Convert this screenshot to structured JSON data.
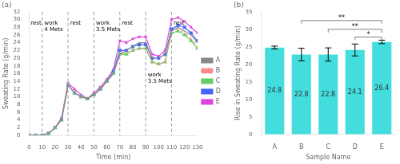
{
  "chart_data": [
    {
      "type": "line",
      "title": "(a)",
      "x_label": "Time (min)",
      "y_label": "Sweating Rate (g/min)",
      "x": [
        0,
        5,
        10,
        15,
        20,
        25,
        30,
        35,
        40,
        45,
        50,
        55,
        60,
        65,
        70,
        75,
        80,
        85,
        90,
        95,
        100,
        105,
        110,
        115,
        120,
        125,
        130
      ],
      "series": [
        {
          "name": "A",
          "color": "#888888",
          "line_style": "solid",
          "marker": "none",
          "values": [
            0,
            0,
            0,
            0.5,
            2,
            4,
            13,
            11,
            10,
            9.5,
            10.5,
            12,
            14,
            16,
            21,
            22,
            23,
            24,
            24,
            20,
            20,
            21,
            27,
            28,
            27,
            26,
            24
          ]
        },
        {
          "name": "B",
          "color": "#ff8888",
          "line_style": "dashed",
          "marker": "none",
          "values": [
            0,
            0,
            0,
            0.5,
            2,
            4,
            13,
            11,
            10,
            9.5,
            10.5,
            12,
            14,
            16,
            21,
            21.5,
            22,
            22.5,
            22.5,
            19,
            18.5,
            19,
            27,
            27.5,
            26.5,
            25,
            23
          ]
        },
        {
          "name": "C",
          "color": "#66cc66",
          "line_style": "solid",
          "marker": "triangle",
          "values": [
            0,
            0,
            0,
            0.5,
            2,
            4,
            13,
            11,
            10,
            9.5,
            10.5,
            12,
            14,
            16,
            21,
            21,
            22,
            22.5,
            22.5,
            19,
            18.5,
            19,
            26.5,
            27,
            26,
            24.5,
            22.5
          ]
        },
        {
          "name": "D",
          "color": "#4466ff",
          "line_style": "solid",
          "marker": "square",
          "values": [
            0,
            0,
            0,
            0.5,
            2,
            4,
            13,
            11,
            10,
            9.5,
            10.5,
            12,
            14,
            16.5,
            22,
            22,
            23,
            23.5,
            23.5,
            20,
            20,
            21,
            27.5,
            28.5,
            28,
            26.5,
            24.5
          ]
        },
        {
          "name": "E",
          "color": "#dd44dd",
          "line_style": "solid",
          "marker": "x",
          "values": [
            0,
            0,
            0,
            0.5,
            2,
            4.5,
            13.5,
            12,
            10.5,
            9.5,
            11,
            12.5,
            14.5,
            17,
            24.5,
            24,
            25,
            25.5,
            25.5,
            21,
            20.5,
            22,
            30,
            30.5,
            29.5,
            28,
            26.5
          ]
        }
      ],
      "xlim": [
        0,
        130
      ],
      "xticks": [
        0,
        10,
        20,
        30,
        40,
        50,
        60,
        70,
        80,
        90,
        100,
        110,
        120,
        130
      ],
      "ylim": [
        0,
        32
      ],
      "yticks": [
        0,
        2,
        4,
        6,
        8,
        10,
        12,
        14,
        16,
        18,
        20,
        22,
        24,
        26,
        28,
        30,
        32
      ],
      "vlines": [
        10,
        30,
        50,
        70,
        90,
        110
      ],
      "annotations": [
        {
          "x": 0.5,
          "y": 30,
          "text": "rest"
        },
        {
          "x": 11,
          "y": 30,
          "text": "work\n4 Mets"
        },
        {
          "x": 31,
          "y": 30,
          "text": "rest"
        },
        {
          "x": 51,
          "y": 30,
          "text": "work\n3.5 Mets"
        },
        {
          "x": 71,
          "y": 30,
          "text": "rest"
        },
        {
          "x": 111,
          "y": 30,
          "text": "rest"
        },
        {
          "x": 91,
          "y": 16.5,
          "text": "work\n3.5 Mets"
        }
      ],
      "legend": "right",
      "grid": false
    },
    {
      "type": "bar",
      "title": "(b)",
      "x_label": "Sample Name",
      "y_label": "Rise in Sweating Rate (g/min)",
      "categories": [
        "A",
        "B",
        "C",
        "D",
        "E"
      ],
      "values": [
        24.8,
        22.8,
        22.8,
        24.1,
        26.4
      ],
      "errors": [
        0.4,
        1.8,
        1.9,
        1.7,
        0.5
      ],
      "color": "#44dddd",
      "ylim": [
        0,
        35
      ],
      "yticks": [
        0,
        5,
        10,
        15,
        20,
        25,
        30,
        35
      ],
      "data_labels": true,
      "brackets": [
        {
          "from": "B",
          "to": "E",
          "y": 32.5,
          "label": "**"
        },
        {
          "from": "C",
          "to": "E",
          "y": 30.0,
          "label": "**"
        },
        {
          "from": "D",
          "to": "E",
          "y": 27.8,
          "label": "*"
        }
      ],
      "grid": false
    }
  ]
}
